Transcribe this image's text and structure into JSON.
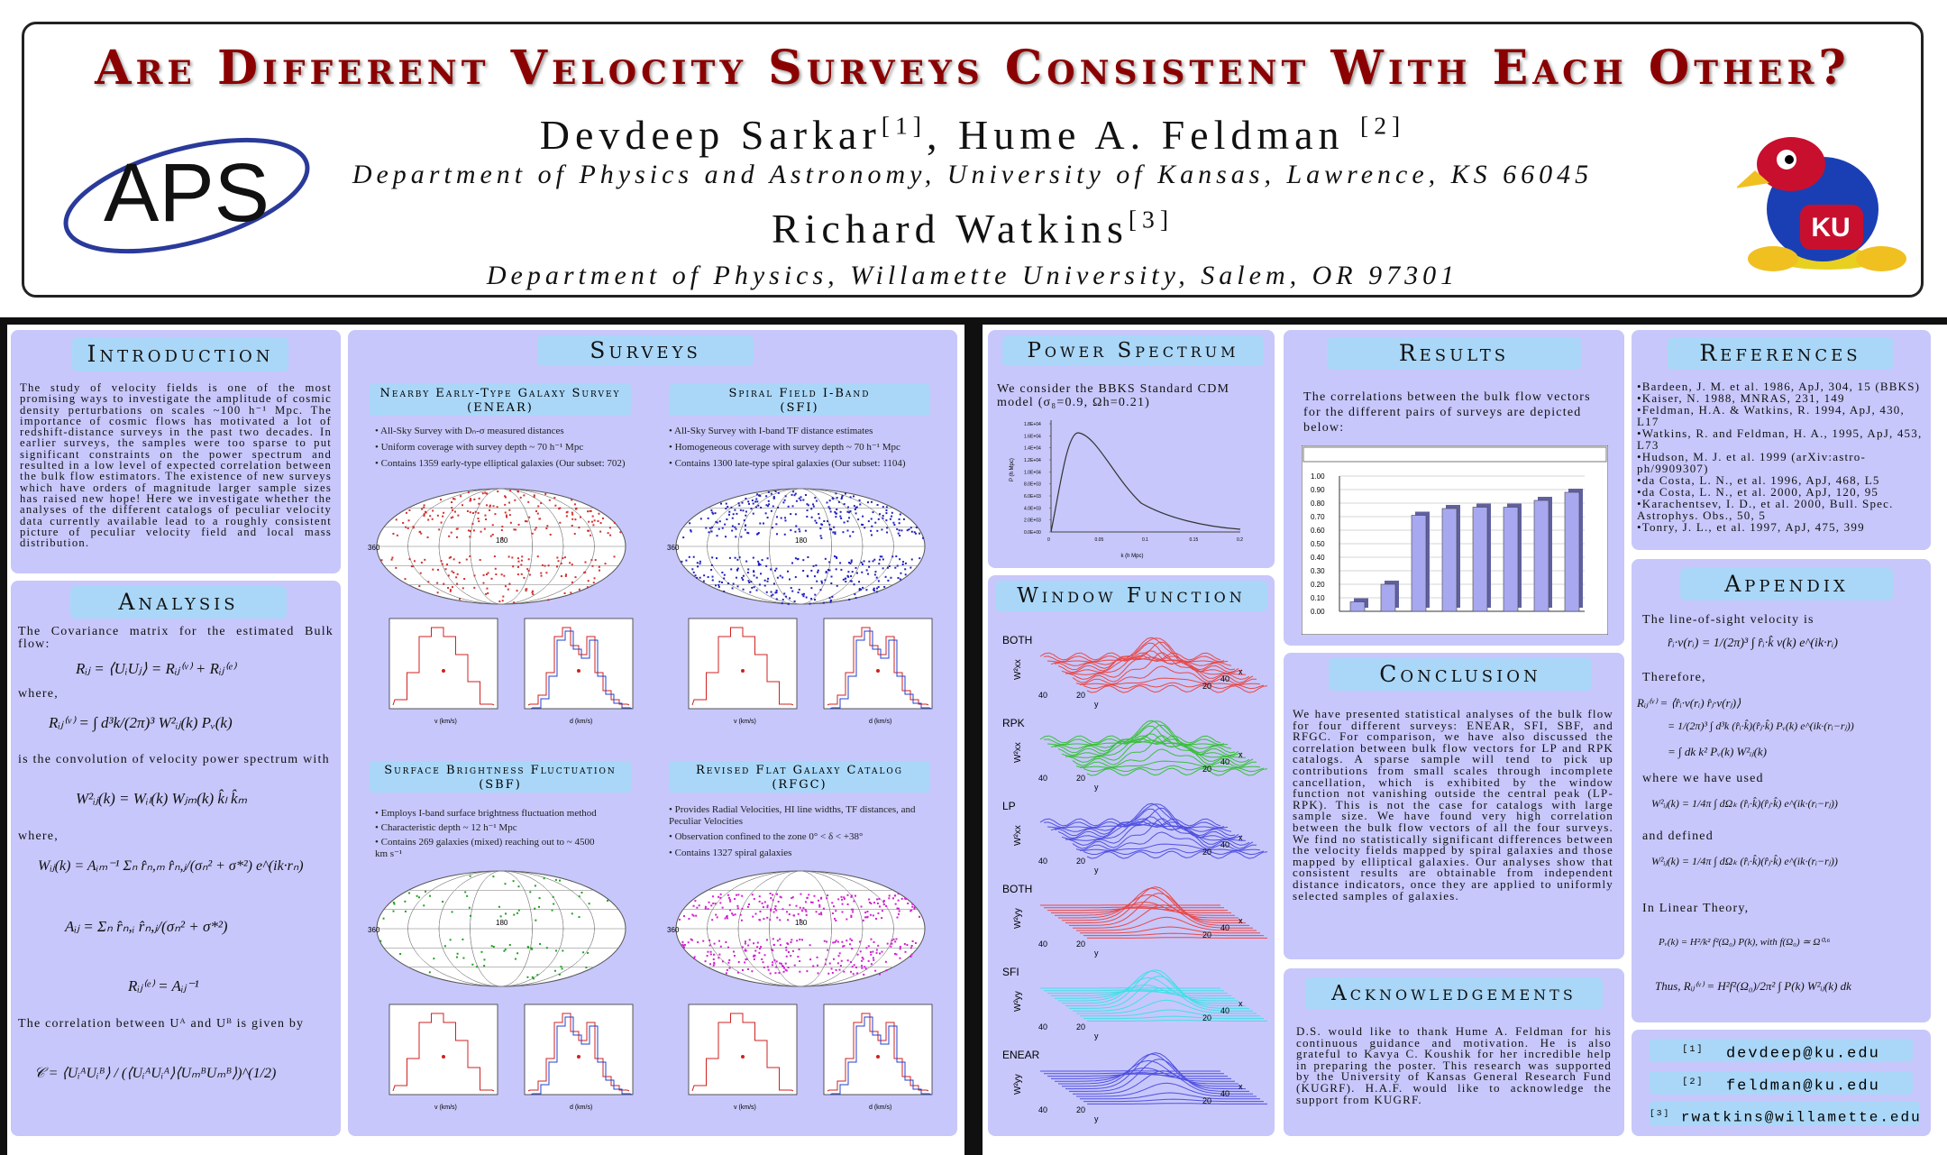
{
  "header": {
    "title": "Are Different Velocity Surveys Consistent With Each Other?",
    "authors_line1": "Devdeep Sarkar",
    "authors_line1_ref1": "[1]",
    "authors_line1_b": ", Hume A. Feldman",
    "authors_line1_ref2": "[2]",
    "affiliation1": "Department of Physics and Astronomy, University of Kansas, Lawrence, KS 66045",
    "authors_line2": "Richard Watkins",
    "authors_line2_ref": "[3]",
    "affiliation2": "Department of Physics, Willamette University, Salem, OR 97301",
    "logo_left_text": "APS",
    "logo_right_text": "KU"
  },
  "introduction": {
    "title": "Introduction",
    "text": "The study of velocity fields is one of the most promising ways to investigate the amplitude of cosmic density perturbations on scales ~100 h⁻¹ Mpc. The importance of cosmic flows has motivated a lot of redshift-distance surveys in the past two decades. In earlier surveys, the samples were too sparse to put significant constraints on the power spectrum and resulted in a low level of expected correlation between the bulk flow estimators. The existence of new surveys which have orders of magnitude larger sample sizes has raised new hope! Here we investigate whether the analyses of the different catalogs of peculiar velocity data currently available lead to a roughly consistent picture of peculiar velocity field and local mass distribution."
  },
  "analysis": {
    "title": "Analysis",
    "t1": "The Covariance matrix for the estimated Bulk flow:",
    "eq1": "Rᵢⱼ = ⟨UᵢUⱼ⟩ = Rᵢⱼ⁽ᵛ⁾ + Rᵢⱼ⁽ᵉ⁾",
    "t2": "where,",
    "eq2": "Rᵢⱼ⁽ᵛ⁾ = ∫ d³k/(2π)³ W²ᵢⱼ(k) Pᵥ(k)",
    "t3": "is the convolution of velocity power spectrum with",
    "eq3": "W²ᵢⱼ(k) = Wᵢₗ(k) Wⱼₘ(k) k̂ₗ k̂ₘ",
    "t4": "where,",
    "eq4": "Wᵢⱼ(k) = Aᵢₘ⁻¹ Σₙ r̂ₙ,ₘ r̂ₙ,ⱼ/(σₙ² + σ*²) e^(ik·rₙ)",
    "eq5": "Aᵢⱼ = Σₙ r̂ₙ,ᵢ r̂ₙ,ⱼ/(σₙ² + σ*²)",
    "eq6": "Rᵢⱼ⁽ᵉ⁾ = Aᵢⱼ⁻¹",
    "t5": "The correlation between Uᴬ and Uᴮ is given by",
    "eq7": "𝒞 = ⟨UᵢᴬUᵢᴮ⟩ / (⟨UᵢᴬUᵢᴬ⟩⟨UₘᴮUₘᴮ⟩)^(1/2)"
  },
  "surveys": {
    "title": "Surveys",
    "enear": {
      "title": "Nearby Early-Type Galaxy Survey",
      "abbr": "(ENEAR)",
      "bullets": [
        "• All-Sky Survey with Dₙ-σ measured distances",
        "• Uniform coverage with survey depth ~ 70 h⁻¹ Mpc",
        "• Contains 1359 early-type elliptical galaxies (Our subset: 702)"
      ],
      "color": "#d23030"
    },
    "sfi": {
      "title": "Spiral Field I-Band",
      "abbr": "(SFI)",
      "bullets": [
        "• All-Sky Survey with I-band TF distance estimates",
        "• Homogeneous coverage with survey depth ~ 70 h⁻¹ Mpc",
        "• Contains 1300 late-type spiral galaxies (Our subset: 1104)"
      ],
      "color": "#2020c0"
    },
    "sbf": {
      "title": "Surface Brightness Fluctuation",
      "abbr": "(SBF)",
      "bullets": [
        "• Employs I-band surface brightness fluctuation method",
        "• Characteristic depth ~ 12 h⁻¹ Mpc",
        "• Contains 269 galaxies (mixed) reaching out to ~ 4500 km s⁻¹"
      ],
      "color": "#20a020"
    },
    "rfgc": {
      "title": "Revised Flat Galaxy Catalog",
      "abbr": "(RFGC)",
      "bullets": [
        "• Provides Radial Velocities, HI line widths, TF distances, and Peculiar Velocities",
        "• Observation confined to the zone 0° < δ < +38°",
        "• Contains 1327 spiral galaxies"
      ],
      "color": "#d020d0"
    },
    "sky_labels": {
      "left": "360",
      "center": "180"
    },
    "hist_xlabel_v": "v (km/s)",
    "hist_xlabel_d": "d (km/s)"
  },
  "power_spectrum": {
    "title": "Power Spectrum",
    "text": "We consider the BBKS Standard CDM model (σ₈=0.9, Ωh=0.21)",
    "ylabel": "P (h Mpc)",
    "xlabel": "k (h Mpc)",
    "yticks": [
      "1.8E+04",
      "1.6E+04",
      "1.4E+04",
      "1.2E+04",
      "1.0E+04",
      "8.0E+03",
      "6.0E+03",
      "4.0E+03",
      "2.0E+03",
      "0.0E+00"
    ],
    "xticks": [
      "0",
      "0.05",
      "0.1",
      "0.15",
      "0.2"
    ]
  },
  "window_function": {
    "title": "Window Function",
    "labels": [
      "BOTH",
      "RPK",
      "LP",
      "BOTH",
      "SFI",
      "ENEAR"
    ],
    "zlabels": [
      "W²xx",
      "W²xx",
      "W²xx",
      "W²yy",
      "W²yy",
      "W²yy"
    ],
    "colors": [
      "#e84848",
      "#38c038",
      "#5050e0",
      "#e84848",
      "#40e0e8",
      "#5050e0"
    ],
    "axis_labels": [
      "40",
      "20",
      "y",
      "20",
      "40",
      "x"
    ]
  },
  "results": {
    "title": "Results",
    "text": "The correlations between the bulk flow vectors for the different pairs of surveys are depicted below:",
    "chart_data": {
      "type": "bar",
      "ylim": [
        0,
        1.0
      ],
      "yticks": [
        "1.00",
        "0.90",
        "0.80",
        "0.70",
        "0.60",
        "0.50",
        "0.40",
        "0.30",
        "0.20",
        "0.10",
        "0.00"
      ],
      "values": [
        0.07,
        0.2,
        0.71,
        0.76,
        0.77,
        0.77,
        0.82,
        0.88
      ]
    }
  },
  "conclusion": {
    "title": "Conclusion",
    "text": "We have presented statistical analyses of the bulk flow for four different surveys: ENEAR, SFI, SBF, and RFGC. For comparison, we have also discussed the correlation between bulk flow vectors for LP and RPK catalogs. A sparse sample will tend to pick up contributions from small scales through incomplete cancellation, which is exhibited by the window function not vanishing outside the central peak (LP-RPK). This is not the case for catalogs with large sample size. We have found very high correlation between the bulk flow vectors of all the four surveys. We find no statistically significant differences between the velocity fields mapped by spiral galaxies and those mapped by elliptical galaxies. Our analyses show that consistent results are obtainable from independent distance indicators, once they are applied to uniformly selected samples of galaxies."
  },
  "acknowledgements": {
    "title": "Acknowledgements",
    "text": "D.S. would like to thank Hume A. Feldman for his continuous guidance and motivation. He is also grateful to Kavya C. Koushik for her incredible help in preparing the poster. This research was supported by the University of Kansas General Research Fund (KUGRF). H.A.F. would like to acknowledge the support from KUGRF."
  },
  "references": {
    "title": "References",
    "items": [
      "•Bardeen, J. M. et al. 1986, ApJ, 304, 15 (BBKS)",
      "•Kaiser, N. 1988, MNRAS, 231, 149",
      "•Feldman, H.A. & Watkins, R. 1994, ApJ, 430, L17",
      "•Watkins, R. and Feldman, H. A., 1995, ApJ, 453, L73",
      "•Hudson, M. J. et al. 1999 (arXiv:astro-ph/9909307)",
      "•da Costa, L. N., et al. 1996, ApJ, 468, L5",
      "•da Costa, L. N., et al. 2000, ApJ, 120, 95",
      "•Karachentsev, I. D., et al. 2000, Bull. Spec. Astrophys. Obs., 50, 5",
      "•Tonry, J. L., et al. 1997, ApJ, 475, 399"
    ]
  },
  "appendix": {
    "title": "Appendix",
    "t1": "The line-of-sight velocity is",
    "eq1": "r̂ᵢ·v(rᵢ) = 1/(2π)³ ∫ r̂ᵢ·k̂ v(k) e^(ik·rᵢ)",
    "t2": "Therefore,",
    "eq2a": "Rᵢⱼ⁽ᵛ⁾ = ⟨r̂ᵢ·v(rᵢ) r̂ⱼ·v(rⱼ)⟩",
    "eq2b": "= 1/(2π)³ ∫ d³k (r̂ᵢ·k̂)(r̂ⱼ·k̂) Pᵥ(k) e^(ik·(rᵢ−rⱼ))",
    "eq2c": "= ∫ dk k² Pᵥ(k) W²ᵢⱼ(k)",
    "t3": "where we have used",
    "eq3": "W²ᵢⱼ(k) = 1/4π ∫ dΩₖ (r̂ᵢ·k̂)(r̂ⱼ·k̂) e^(ik·(rᵢ−rⱼ))",
    "t4": "and defined",
    "eq4": "W²ᵢⱼ(k) = 1/4π ∫ dΩₖ (r̂ᵢ·k̂)(r̂ⱼ·k̂) e^(ik·(rᵢ−rⱼ))",
    "t5": "In Linear Theory,",
    "eq5": "Pᵥ(k) = H²/k² f²(Ω₀) P(k), with f(Ω₀) ≃ Ω⁰·⁶",
    "eq6": "Thus, Rᵢⱼ⁽ᵛ⁾ = H²f²(Ω₀)/2π² ∫ P(k) W²ᵢⱼ(k) dk"
  },
  "emails": [
    {
      "ref": "[1]",
      "addr": "devdeep@ku.edu"
    },
    {
      "ref": "[2]",
      "addr": "feldman@ku.edu"
    },
    {
      "ref": "[3]",
      "addr": "rwatkins@willamette.edu"
    }
  ]
}
